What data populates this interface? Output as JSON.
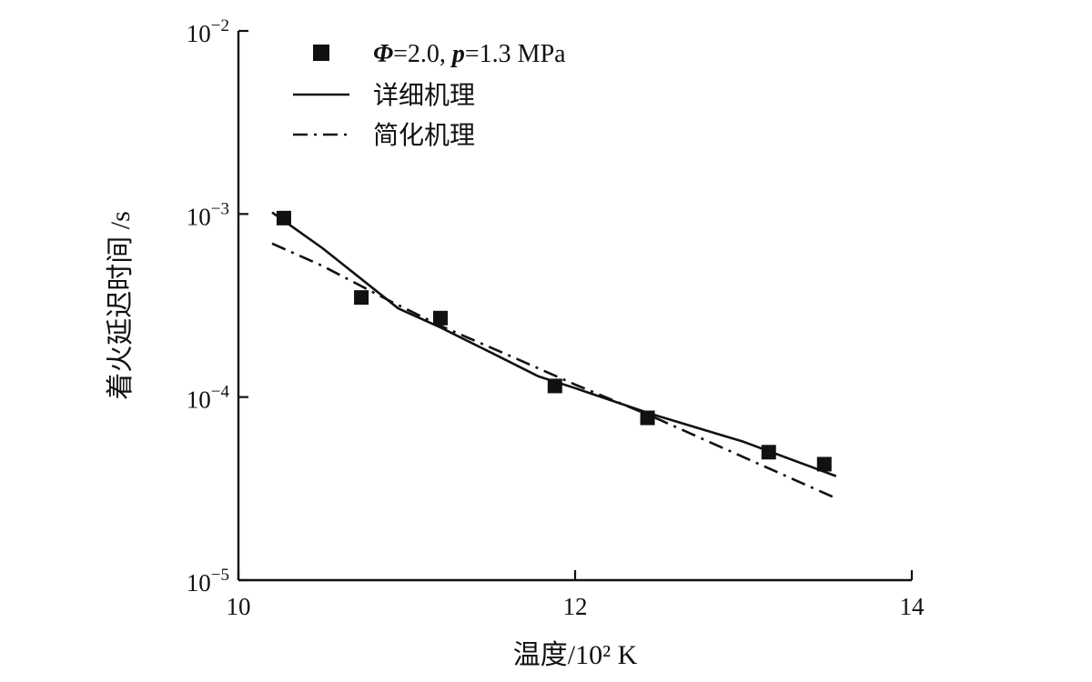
{
  "chart_data": {
    "type": "scatter",
    "xlabel": "温度/10² K",
    "ylabel": "着火延迟时间 /s",
    "xlim": [
      10,
      14
    ],
    "ylim": [
      1e-05,
      0.01
    ],
    "yscale": "log",
    "grid": false,
    "legend_position": "top-left",
    "x_ticks": [
      {
        "value": 10,
        "label": "10"
      },
      {
        "value": 12,
        "label": "12"
      },
      {
        "value": 14,
        "label": "14"
      }
    ],
    "y_ticks": [
      {
        "value": 1e-05,
        "base": "10",
        "exp": "−5"
      },
      {
        "value": 0.0001,
        "base": "10",
        "exp": "−4"
      },
      {
        "value": 0.001,
        "base": "10",
        "exp": "−3"
      },
      {
        "value": 0.01,
        "base": "10",
        "exp": "−2"
      }
    ],
    "series": [
      {
        "name": "Φ=2.0, p=1.3 MPa",
        "kind": "markers",
        "marker": "square",
        "color": "#111111",
        "x": [
          10.27,
          10.73,
          11.2,
          11.88,
          12.43,
          13.15,
          13.48
        ],
        "y": [
          0.00095,
          0.00035,
          0.00027,
          0.000115,
          7.7e-05,
          5e-05,
          4.3e-05
        ]
      },
      {
        "name": "详细机理",
        "kind": "line",
        "dash": "solid",
        "color": "#111111",
        "x": [
          10.2,
          10.5,
          10.95,
          11.2,
          11.5,
          11.78,
          12.0,
          12.45,
          13.0,
          13.55
        ],
        "y": [
          0.00102,
          0.00065,
          0.000305,
          0.00024,
          0.000175,
          0.00013,
          0.000112,
          8.1e-05,
          5.7e-05,
          3.7e-05
        ]
      },
      {
        "name": "简化机理",
        "kind": "line",
        "dash": "dash-dot",
        "color": "#111111",
        "x": [
          10.2,
          10.5,
          10.9,
          11.2,
          11.6,
          12.0,
          12.45,
          13.0,
          13.55
        ],
        "y": [
          0.00069,
          0.00052,
          0.000335,
          0.000245,
          0.00017,
          0.000117,
          7.9e-05,
          4.7e-05,
          2.8e-05
        ]
      }
    ]
  }
}
